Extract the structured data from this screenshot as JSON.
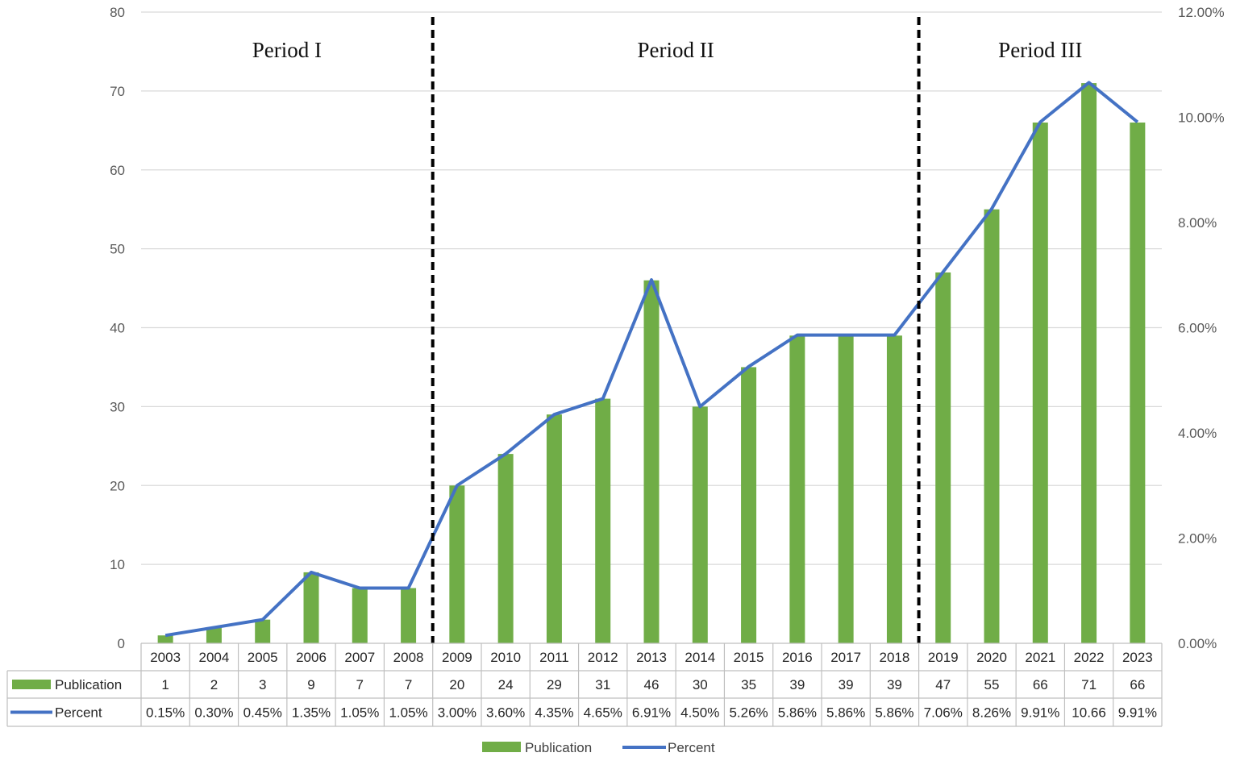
{
  "chart_data": {
    "type": "bar",
    "categories": [
      "2003",
      "2004",
      "2005",
      "2006",
      "2007",
      "2008",
      "2009",
      "2010",
      "2011",
      "2012",
      "2013",
      "2014",
      "2015",
      "2016",
      "2017",
      "2018",
      "2019",
      "2020",
      "2021",
      "2022",
      "2023"
    ],
    "series": [
      {
        "name": "Publication",
        "type": "bar",
        "axis": "left",
        "color": "#70ad47",
        "values": [
          1,
          2,
          3,
          9,
          7,
          7,
          20,
          24,
          29,
          31,
          46,
          30,
          35,
          39,
          39,
          39,
          47,
          55,
          66,
          71,
          66
        ],
        "table_labels": [
          "1",
          "2",
          "3",
          "9",
          "7",
          "7",
          "20",
          "24",
          "29",
          "31",
          "46",
          "30",
          "35",
          "39",
          "39",
          "39",
          "47",
          "55",
          "66",
          "71",
          "66"
        ]
      },
      {
        "name": "Percent",
        "type": "line",
        "axis": "right",
        "color": "#4472c4",
        "values": [
          0.15,
          0.3,
          0.45,
          1.35,
          1.05,
          1.05,
          3.0,
          3.6,
          4.35,
          4.65,
          6.91,
          4.5,
          5.26,
          5.86,
          5.86,
          5.86,
          7.06,
          8.26,
          9.91,
          10.66,
          9.91
        ],
        "table_labels": [
          "0.15%",
          "0.30%",
          "0.45%",
          "1.35%",
          "1.05%",
          "1.05%",
          "3.00%",
          "3.60%",
          "4.35%",
          "4.65%",
          "6.91%",
          "4.50%",
          "5.26%",
          "5.86%",
          "5.86%",
          "5.86%",
          "7.06%",
          "8.26%",
          "9.91%",
          "10.66",
          "9.91%"
        ]
      }
    ],
    "left_axis": {
      "ylim": [
        0,
        80
      ],
      "ticks": [
        "0",
        "10",
        "20",
        "30",
        "40",
        "50",
        "60",
        "70",
        "80"
      ]
    },
    "right_axis": {
      "ylim": [
        0,
        12
      ],
      "ticks": [
        "0.00%",
        "2.00%",
        "4.00%",
        "6.00%",
        "8.00%",
        "10.00%",
        "12.00%"
      ]
    },
    "periods": [
      {
        "label": "Period I",
        "start": "2003",
        "end": "2008"
      },
      {
        "label": "Period II",
        "start": "2009",
        "end": "2018"
      },
      {
        "label": "Period III",
        "start": "2019",
        "end": "2023"
      }
    ],
    "grid": true,
    "data_table": true,
    "legend": {
      "position": "bottom",
      "entries": [
        "Publication",
        "Percent"
      ]
    },
    "title": "",
    "xlabel": "",
    "ylabel": ""
  }
}
